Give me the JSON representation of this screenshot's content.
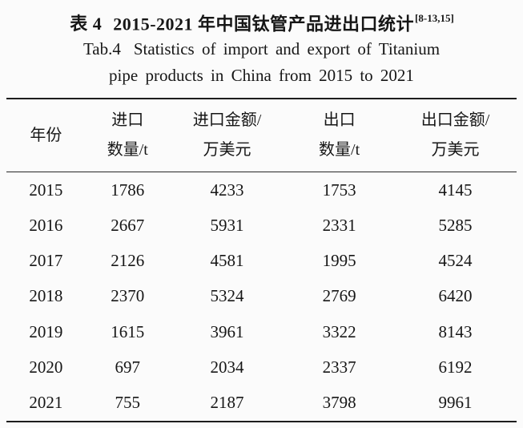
{
  "title": {
    "zh_prefix": "表 4",
    "zh_main": "2015-2021 年中国钛管产品进出口统计",
    "citation": "[8-13,15]",
    "en_label": "Tab.4",
    "en_line1": "Statistics of import and export of Titanium",
    "en_line2": "pipe products in China from 2015 to 2021"
  },
  "table": {
    "columns": [
      {
        "line1": "年份",
        "line2": ""
      },
      {
        "line1": "进口",
        "line2": "数量/t"
      },
      {
        "line1": "进口金额/",
        "line2": "万美元"
      },
      {
        "line1": "出口",
        "line2": "数量/t"
      },
      {
        "line1": "出口金额/",
        "line2": "万美元"
      }
    ],
    "rows": [
      [
        "2015",
        "1786",
        "4233",
        "1753",
        "4145"
      ],
      [
        "2016",
        "2667",
        "5931",
        "2331",
        "5285"
      ],
      [
        "2017",
        "2126",
        "4581",
        "1995",
        "4524"
      ],
      [
        "2018",
        "2370",
        "5324",
        "2769",
        "6420"
      ],
      [
        "2019",
        "1615",
        "3961",
        "3322",
        "8143"
      ],
      [
        "2020",
        "697",
        "2034",
        "2337",
        "6192"
      ],
      [
        "2021",
        "755",
        "2187",
        "3798",
        "9961"
      ]
    ]
  },
  "chart_data": {
    "type": "table",
    "title": "表 4 2015-2021 年中国钛管产品进出口统计 / Tab.4 Statistics of import and export of Titanium pipe products in China from 2015 to 2021",
    "citation": "[8-13,15]",
    "columns": [
      "年份",
      "进口数量/t",
      "进口金额/万美元",
      "出口数量/t",
      "出口金额/万美元"
    ],
    "categories": [
      2015,
      2016,
      2017,
      2018,
      2019,
      2020,
      2021
    ],
    "series": [
      {
        "name": "进口数量/t",
        "values": [
          1786,
          2667,
          2126,
          2370,
          1615,
          697,
          755
        ]
      },
      {
        "name": "进口金额/万美元",
        "values": [
          4233,
          5931,
          4581,
          5324,
          3961,
          2034,
          2187
        ]
      },
      {
        "name": "出口数量/t",
        "values": [
          1753,
          2331,
          1995,
          2769,
          3322,
          2337,
          3798
        ]
      },
      {
        "name": "出口金额/万美元",
        "values": [
          4145,
          5285,
          4524,
          6420,
          8143,
          6192,
          9961
        ]
      }
    ]
  }
}
